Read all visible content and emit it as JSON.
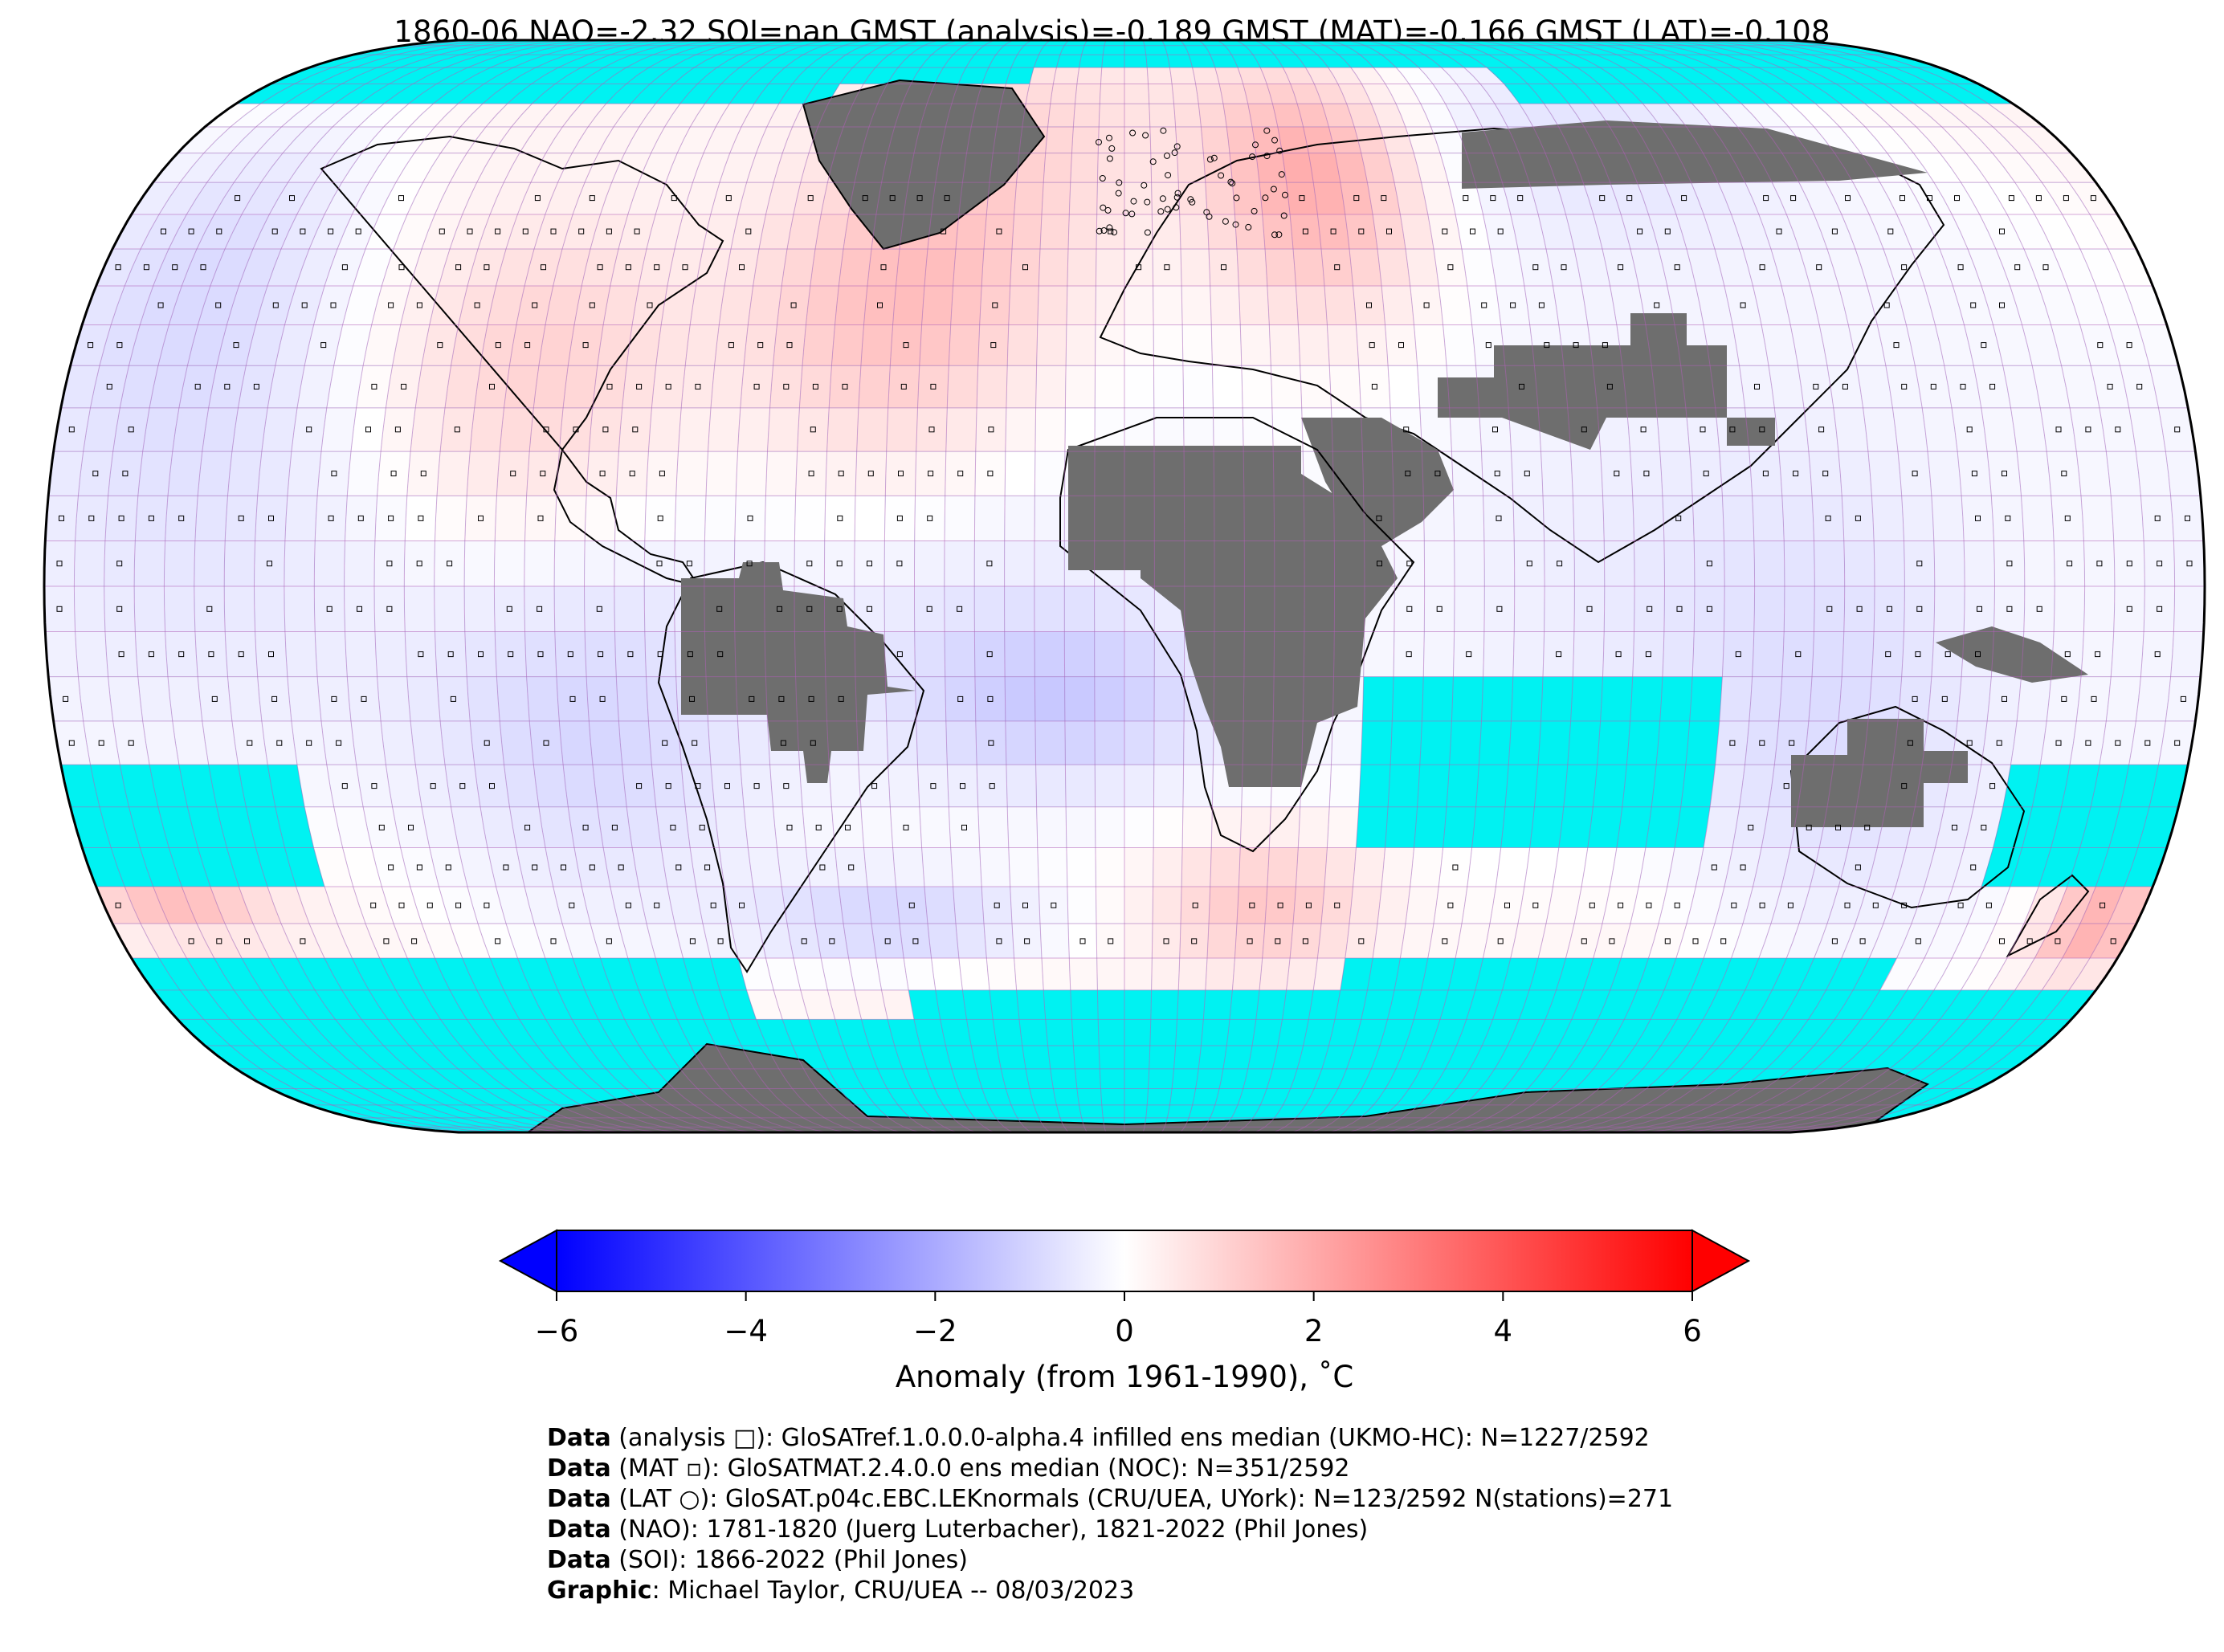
{
  "title": "1860-06 NAO=-2.32 SOI=nan GMST (analysis)=-0.189 GMST (MAT)=-0.166 GMST (LAT)=-0.108",
  "colors": {
    "ocean_nodata": "#00f2f2",
    "land_nodata": "#6e6e6e",
    "grid_line": "#b060b8",
    "coast_line": "#000000",
    "cmap_min": "#0000ff",
    "cmap_mid": "#ffffff",
    "cmap_max": "#ff0000"
  },
  "colorbar": {
    "label": "Anomaly (from 1961-1990), ˚C",
    "vmin": -6,
    "vmax": 6,
    "ticks": [
      "−6",
      "−4",
      "−2",
      "0",
      "2",
      "4",
      "6"
    ],
    "extend": "both"
  },
  "credits": [
    {
      "key": "Data",
      "text": " (analysis □): GloSATref.1.0.0.0-alpha.4 infilled ens median (UKMO-HC): N=1227/2592"
    },
    {
      "key": "Data",
      "text": " (MAT ▫): GloSATMAT.2.4.0.0 ens median (NOC): N=351/2592"
    },
    {
      "key": "Data",
      "text": " (LAT ○): GloSAT.p04c.EBC.LEKnormals (CRU/UEA, UYork): N=123/2592 N(stations)=271"
    },
    {
      "key": "Data",
      "text": " (NAO): 1781-1820 (Juerg Luterbacher), 1821-2022 (Phil Jones)"
    },
    {
      "key": "Data",
      "text": " (SOI): 1866-2022 (Phil Jones)"
    },
    {
      "key": "Graphic",
      "text": ": Michael Taylor, CRU/UEA -- 08/03/2023"
    }
  ],
  "chart_data": {
    "type": "heatmap",
    "projection": "robinson",
    "grid": true,
    "grid_resolution_deg": 5,
    "value_range": [
      -6,
      6
    ],
    "anomaly_regions": [
      {
        "lon": [
          -120,
          -80
        ],
        "lat": [
          10,
          40
        ],
        "value": 1.2
      },
      {
        "lon": [
          -60,
          -20
        ],
        "lat": [
          15,
          45
        ],
        "value": 1.4
      },
      {
        "lon": [
          20,
          50
        ],
        "lat": [
          35,
          65
        ],
        "value": 2.0
      },
      {
        "lon": [
          -40,
          0
        ],
        "lat": [
          40,
          75
        ],
        "value": 0.6
      },
      {
        "lon": [
          -180,
          -140
        ],
        "lat": [
          20,
          60
        ],
        "value": -1.0
      },
      {
        "lon": [
          -30,
          10
        ],
        "lat": [
          -20,
          -5
        ],
        "value": -1.0
      },
      {
        "lon": [
          10,
          40
        ],
        "lat": [
          -45,
          -30
        ],
        "value": 1.4
      },
      {
        "lon": [
          -60,
          -20
        ],
        "lat": [
          -45,
          -35
        ],
        "value": -1.2
      },
      {
        "lon": [
          60,
          120
        ],
        "lat": [
          40,
          75
        ],
        "value": -1.0
      },
      {
        "lon": [
          100,
          140
        ],
        "lat": [
          -40,
          0
        ],
        "value": -0.6
      },
      {
        "lon": [
          165,
          180
        ],
        "lat": [
          -45,
          -35
        ],
        "value": 2.0
      },
      {
        "lon": [
          -180,
          -155
        ],
        "lat": [
          -40,
          -30
        ],
        "value": 1.6
      },
      {
        "lon": [
          -110,
          -70
        ],
        "lat": [
          -30,
          0
        ],
        "value": -0.8
      }
    ]
  }
}
